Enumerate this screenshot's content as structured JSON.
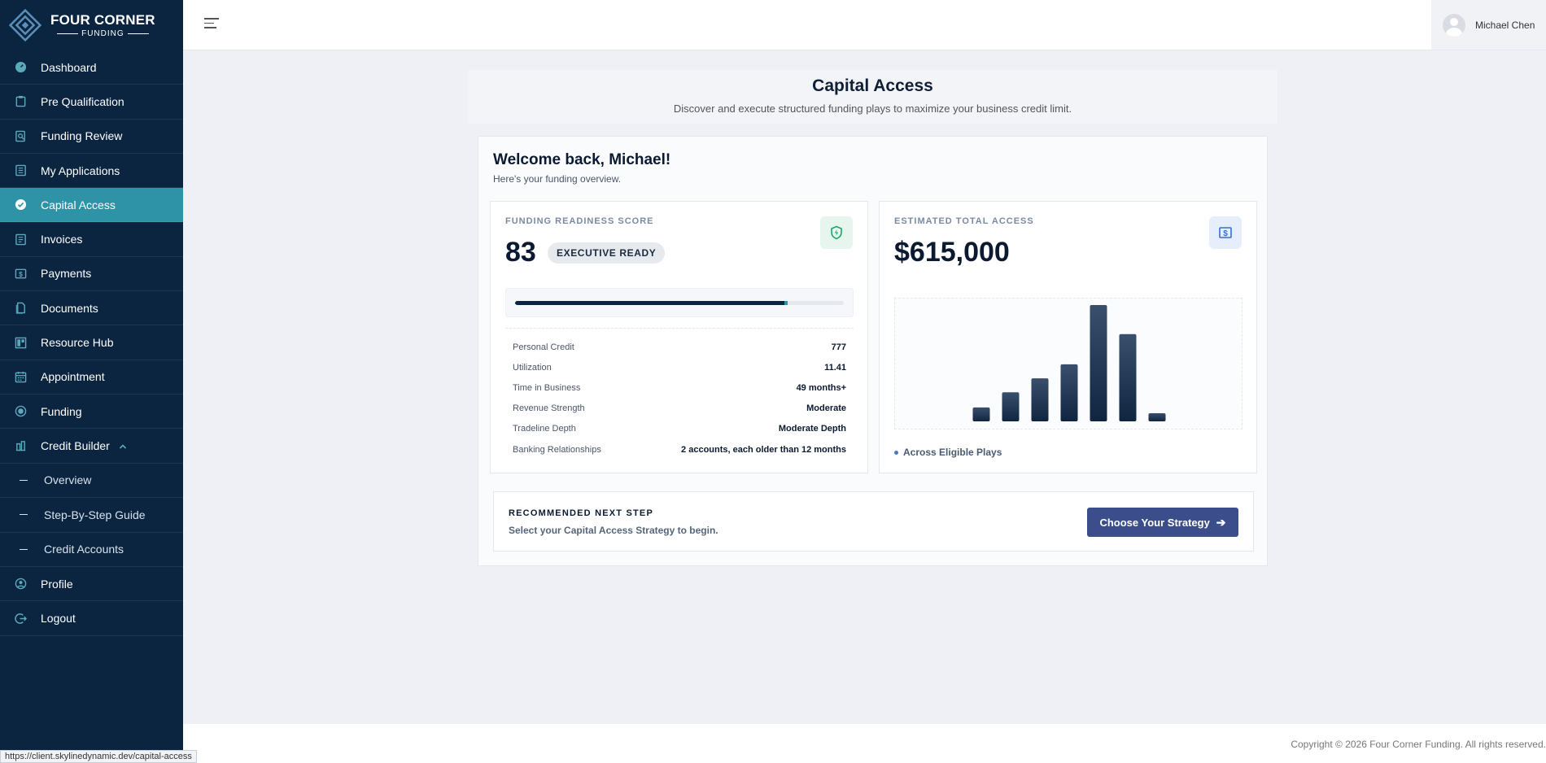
{
  "brand": {
    "line1": "FOUR CORNER",
    "line2": "FUNDING"
  },
  "sidebar": {
    "items": [
      {
        "label": "Dashboard",
        "icon": "gauge-icon"
      },
      {
        "label": "Pre Qualification",
        "icon": "clipboard-icon"
      },
      {
        "label": "Funding Review",
        "icon": "document-search-icon"
      },
      {
        "label": "My Applications",
        "icon": "list-icon"
      },
      {
        "label": "Capital Access",
        "icon": "check-circle-icon",
        "active": true
      },
      {
        "label": "Invoices",
        "icon": "invoice-icon"
      },
      {
        "label": "Payments",
        "icon": "dollar-icon"
      },
      {
        "label": "Documents",
        "icon": "document-icon"
      },
      {
        "label": "Resource Hub",
        "icon": "grid-icon"
      },
      {
        "label": "Appointment",
        "icon": "calendar-icon"
      },
      {
        "label": "Funding",
        "icon": "coin-icon"
      },
      {
        "label": "Credit Builder",
        "icon": "bank-icon",
        "expanded": true
      }
    ],
    "sub_items": [
      {
        "label": "Overview"
      },
      {
        "label": "Step-By-Step Guide"
      },
      {
        "label": "Credit Accounts"
      }
    ],
    "bottom_items": [
      {
        "label": "Profile",
        "icon": "user-circle-icon"
      },
      {
        "label": "Logout",
        "icon": "logout-icon"
      }
    ]
  },
  "topbar": {
    "user_name": "Michael Chen"
  },
  "header": {
    "title": "Capital Access",
    "subtitle": "Discover and execute structured funding plays to maximize your business credit limit."
  },
  "welcome": {
    "title": "Welcome back, Michael!",
    "subtitle": "Here's your funding overview."
  },
  "readiness": {
    "label": "FUNDING READINESS SCORE",
    "score": "83",
    "tier": "EXECUTIVE READY",
    "progress_fraction": 0.83,
    "metrics": [
      {
        "key": "Personal Credit",
        "value": "777"
      },
      {
        "key": "Utilization",
        "value": "11.41"
      },
      {
        "key": "Time in Business",
        "value": "49 months+"
      },
      {
        "key": "Revenue Strength",
        "value": "Moderate"
      },
      {
        "key": "Tradeline Depth",
        "value": "Moderate Depth"
      },
      {
        "key": "Banking Relationships",
        "value": "2 accounts, each older than 12 months"
      }
    ]
  },
  "access": {
    "label": "ESTIMATED TOTAL ACCESS",
    "total": "$615,000",
    "legend": "Across Eligible Plays"
  },
  "chart_data": {
    "type": "bar",
    "values": [
      12,
      25,
      37,
      49,
      100,
      75,
      7
    ],
    "bar_color_top": "#3a4f6c",
    "bar_color_bottom": "#0f2540"
  },
  "next_step": {
    "label": "RECOMMENDED NEXT STEP",
    "subtitle": "Select your Capital Access Strategy to begin.",
    "button": "Choose Your Strategy",
    "button_icon": "arrow-right-icon"
  },
  "footer": {
    "copyright": "Copyright © 2026 Four Corner Funding. All rights reserved."
  },
  "status_bar": {
    "url": "https://client.skylinedynamic.dev/capital-access"
  },
  "colors": {
    "sidebar": "#0b2540",
    "active": "#2f93a8",
    "cta": "#3c4d8c"
  }
}
